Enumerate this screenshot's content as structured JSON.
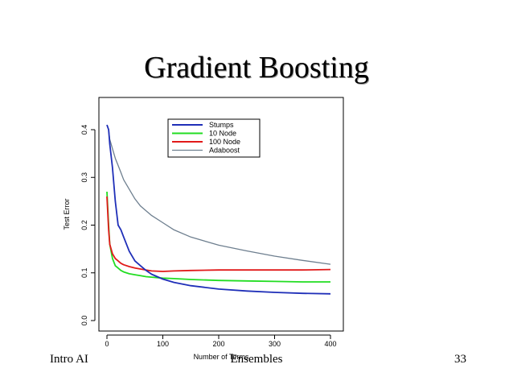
{
  "slide": {
    "title": "Gradient Boosting",
    "footer_left": "Intro AI",
    "footer_center": "Ensembles",
    "footer_right": "33"
  },
  "chart_data": {
    "type": "line",
    "title": "",
    "xlabel": "Number of Terms",
    "ylabel": "Test Error",
    "xlim": [
      0,
      400
    ],
    "ylim": [
      0.0,
      0.4
    ],
    "x_ticks": [
      "0",
      "100",
      "200",
      "300",
      "400"
    ],
    "y_ticks": [
      "0.0",
      "0.1",
      "0.2",
      "0.3",
      "0.4"
    ],
    "grid": false,
    "legend": "top-center",
    "x": [
      0,
      3,
      5,
      10,
      15,
      20,
      25,
      30,
      40,
      50,
      60,
      70,
      80,
      100,
      120,
      150,
      200,
      250,
      300,
      350,
      400
    ],
    "series": [
      {
        "name": "Stumps",
        "color": "#1f2fb8",
        "values": [
          0.41,
          0.4,
          0.37,
          0.32,
          0.25,
          0.2,
          0.19,
          0.175,
          0.145,
          0.125,
          0.115,
          0.105,
          0.097,
          0.087,
          0.08,
          0.073,
          0.066,
          0.062,
          0.059,
          0.057,
          0.056
        ]
      },
      {
        "name": "10 Node",
        "color": "#22dd22",
        "values": [
          0.27,
          0.2,
          0.16,
          0.13,
          0.115,
          0.11,
          0.105,
          0.102,
          0.098,
          0.096,
          0.094,
          0.092,
          0.091,
          0.089,
          0.088,
          0.086,
          0.084,
          0.083,
          0.082,
          0.081,
          0.081
        ]
      },
      {
        "name": "100 Node",
        "color": "#e11a1a",
        "values": [
          0.26,
          0.19,
          0.16,
          0.14,
          0.13,
          0.125,
          0.12,
          0.117,
          0.113,
          0.11,
          0.108,
          0.106,
          0.104,
          0.103,
          0.104,
          0.105,
          0.106,
          0.106,
          0.106,
          0.106,
          0.107
        ]
      },
      {
        "name": "Adaboost",
        "color": "#6e7f8f",
        "values": [
          0.41,
          0.4,
          0.38,
          0.36,
          0.34,
          0.325,
          0.31,
          0.295,
          0.275,
          0.255,
          0.24,
          0.23,
          0.22,
          0.205,
          0.19,
          0.175,
          0.158,
          0.146,
          0.135,
          0.126,
          0.118
        ]
      }
    ]
  }
}
